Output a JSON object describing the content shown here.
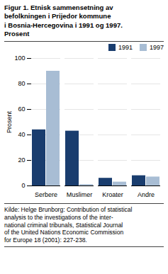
{
  "chart_data": {
    "type": "bar",
    "title": "Figur 1. Etnisk sammensetning av\nbefolkningen i Prijedor kommune\ni Bosnia-Hercegovina i 1991 og 1997.\nProsent",
    "ylabel": "Prosent",
    "categories": [
      "Serbere",
      "Muslimer",
      "Kroater",
      "Andre"
    ],
    "series": [
      {
        "name": "1991",
        "color": "#1a3d6e",
        "values": [
          44,
          43,
          6,
          8
        ]
      },
      {
        "name": "1997",
        "color": "#a8bdd4",
        "values": [
          90,
          1,
          3,
          7
        ]
      }
    ],
    "ylim": [
      0,
      100
    ],
    "yticks": [
      0,
      20,
      40,
      60,
      80,
      100
    ],
    "grid": true,
    "legend": "upper right",
    "caption": "Kilde: Helge Brunborg: Contribution of statistical\nanalysis to the investigations of the inter-\nnational criminal tribunals, Statistical Journal\nof the United Nations Economic Commission\nfor Europe 18 (2001): 227-238."
  }
}
